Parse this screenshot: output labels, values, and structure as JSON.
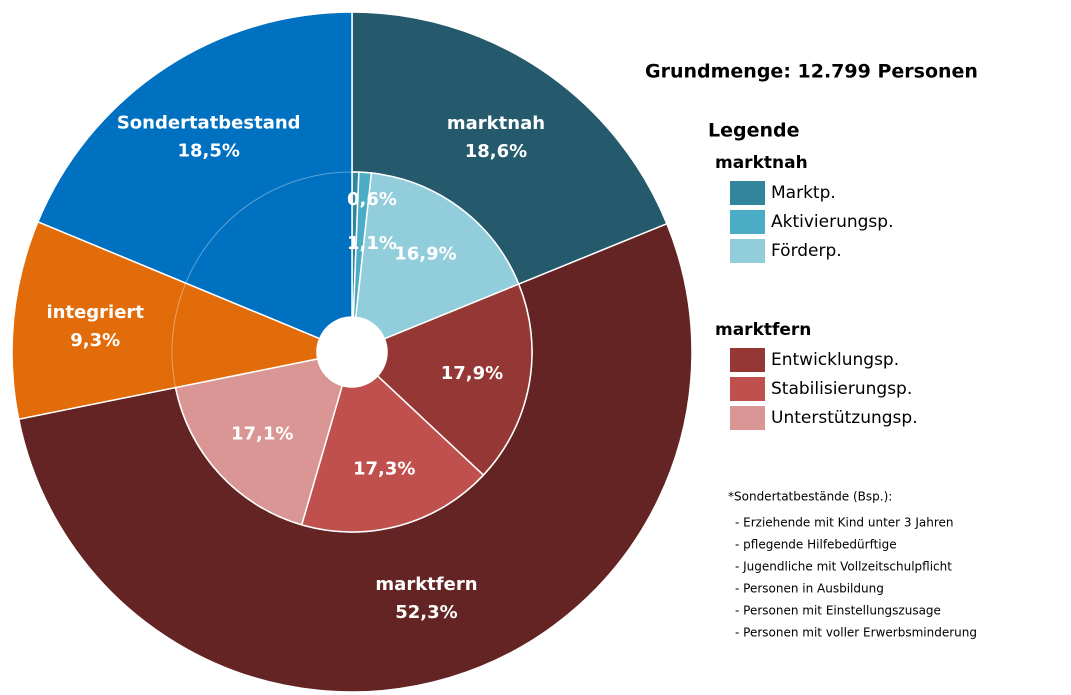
{
  "chart_data": {
    "type": "sunburst",
    "title": "Grundmenge:  12.799 Personen",
    "legend_title": "Legende",
    "groups": [
      {
        "name": "marktnah",
        "value": 18.6,
        "value_label": "18,6%",
        "color": "#245a6b",
        "children": [
          {
            "name": "Marktp.",
            "value": 0.6,
            "value_label": "0,6%",
            "color": "#31859c"
          },
          {
            "name": "Aktivierungsp.",
            "value": 1.1,
            "value_label": "1,1%",
            "color": "#4bacc6"
          },
          {
            "name": "Förderp.",
            "value": 16.9,
            "value_label": "16,9%",
            "color": "#92cddc"
          }
        ]
      },
      {
        "name": "marktfern",
        "value": 52.3,
        "value_label": "52,3%",
        "color": "#632423",
        "children": [
          {
            "name": "Entwicklungsp.",
            "value": 17.9,
            "value_label": "17,9%",
            "color": "#953735"
          },
          {
            "name": "Stabilisierungsp.",
            "value": 17.3,
            "value_label": "17,3%",
            "color": "#c0504d"
          },
          {
            "name": "Unterstützungsp.",
            "value": 17.1,
            "value_label": "17,1%",
            "color": "#d99694"
          }
        ]
      },
      {
        "name": "integriert",
        "value": 9.3,
        "value_label": "9,3%",
        "color": "#e36c0a",
        "children": []
      },
      {
        "name": "Sondertatbestand",
        "value": 18.5,
        "value_label": "18,5%",
        "color": "#0070c0",
        "children": []
      }
    ],
    "footnote": {
      "title": "*Sondertatbestände (Bsp.):",
      "lines": [
        "- Erziehende mit Kind unter 3 Jahren",
        "- pflegende Hilfebedürftige",
        "- Jugendliche mit Vollzeitschulpflicht",
        "- Personen in Ausbildung",
        "- Personen mit Einstellungszusage",
        "- Personen mit voller Erwerbsminderung"
      ]
    }
  }
}
